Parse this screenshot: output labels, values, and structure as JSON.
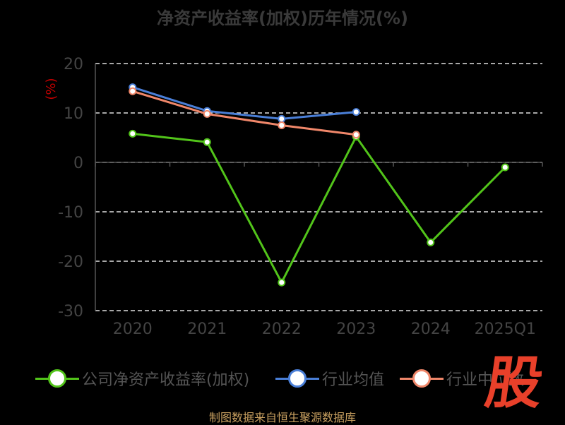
{
  "title": "净资产收益率(加权)历年情况(%)",
  "source": "制图数据来自恒生聚源数据库",
  "logo_text": "股",
  "colors": {
    "company": "#52c41a",
    "industry_avg": "#4a7fd8",
    "industry_median": "#f0876a",
    "grid": "#e0e0e0",
    "axis": "#555555",
    "unit": "#cc0000"
  },
  "chart_data": {
    "type": "line",
    "title": "净资产收益率(加权)历年情况(%)",
    "ylabel": "(%)",
    "xlabel": "",
    "categories": [
      "2020",
      "2021",
      "2022",
      "2023",
      "2024",
      "2025Q1"
    ],
    "ylim": [
      -30,
      20
    ],
    "yticks": [
      "20",
      "10",
      "0",
      "-10",
      "-20",
      "-30"
    ],
    "grid": true,
    "legend_position": "bottom",
    "series": [
      {
        "name": "公司净资产收益率(加权)",
        "color": "#52c41a",
        "values": [
          5.8,
          4.1,
          -24.3,
          5.2,
          -16.2,
          -1.0
        ]
      },
      {
        "name": "行业均值",
        "color": "#4a7fd8",
        "values": [
          15.2,
          10.4,
          8.8,
          10.2,
          null,
          null
        ]
      },
      {
        "name": "行业中位数",
        "color": "#f0876a",
        "values": [
          14.4,
          9.8,
          7.5,
          5.6,
          null,
          null
        ]
      }
    ]
  },
  "legend": {
    "company": "公司净资产收益率(加权)",
    "industry_avg": "行业均值",
    "industry_median": "行业中位数"
  }
}
